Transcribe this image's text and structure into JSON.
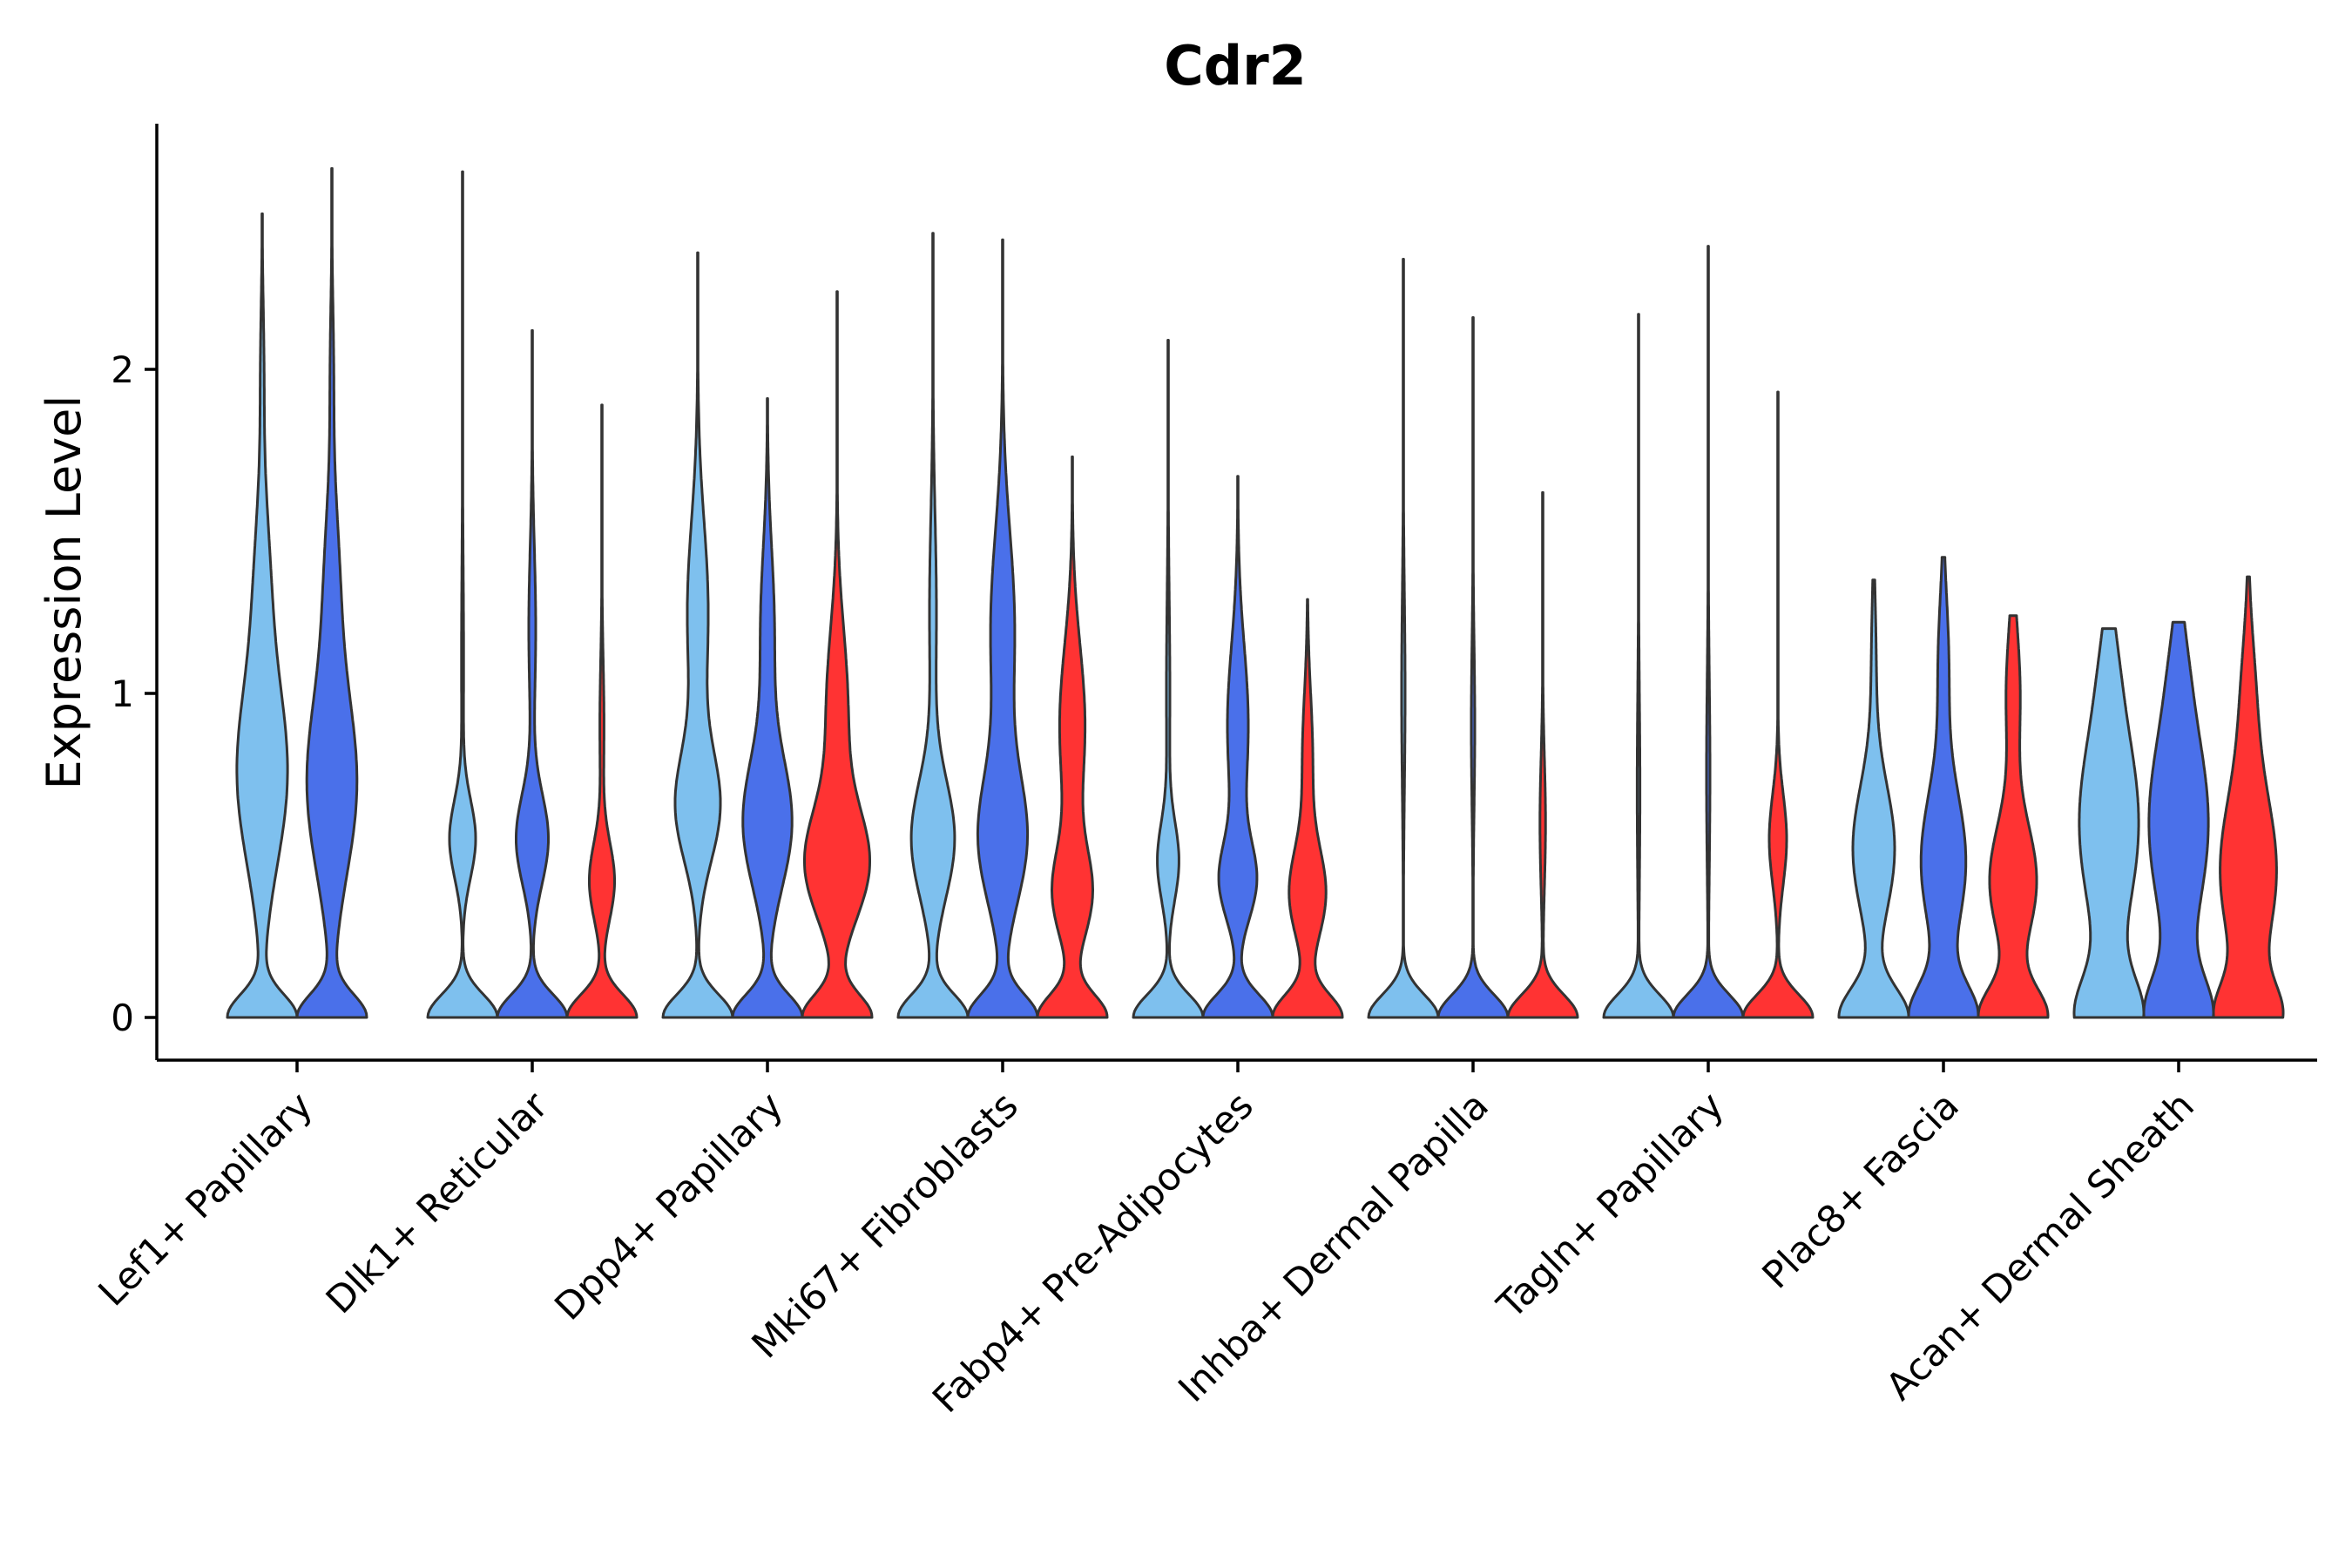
{
  "chart_data": {
    "type": "violin",
    "title": "Cdr2",
    "xlabel": "",
    "ylabel": "Expression Level",
    "ylim": [
      -0.13,
      2.75
    ],
    "yticks": [
      0,
      1,
      2
    ],
    "ytick_labels": [
      "0",
      "1",
      "2"
    ],
    "grid": false,
    "legend": "none",
    "categories": [
      "Lef1+ Papillary",
      "Dlk1+ Reticular",
      "Dpp4+ Papillary",
      "Mki67+ Fibroblasts",
      "Fabp4+ Pre-Adipocytes",
      "Inhba+ Dermal Papilla",
      "Tagln+ Papillary",
      "Plac8+ Fascia",
      "Acan+ Dermal Sheath"
    ],
    "group_colors": [
      "#7EC0EE",
      "#4A70EA",
      "#FF3333"
    ],
    "violins": [
      {
        "category": "Lef1+ Papillary",
        "group": 0,
        "max": 2.48,
        "modes": [
          [
            0.0,
            1.0,
            0.07
          ],
          [
            0.75,
            0.73,
            0.28
          ],
          [
            1.35,
            0.2,
            0.25
          ],
          [
            2.0,
            0.05,
            0.2
          ]
        ]
      },
      {
        "category": "Lef1+ Papillary",
        "group": 1,
        "max": 2.62,
        "modes": [
          [
            0.0,
            1.0,
            0.07
          ],
          [
            0.72,
            0.73,
            0.28
          ],
          [
            1.35,
            0.2,
            0.25
          ],
          [
            2.0,
            0.05,
            0.2
          ]
        ]
      },
      {
        "category": "Dlk1+ Reticular",
        "group": 0,
        "max": 2.61,
        "modes": [
          [
            0.0,
            1.0,
            0.07
          ],
          [
            0.55,
            0.37,
            0.12
          ],
          [
            1.1,
            0.03,
            0.3
          ]
        ]
      },
      {
        "category": "Dlk1+ Reticular",
        "group": 1,
        "max": 2.12,
        "modes": [
          [
            0.0,
            1.0,
            0.07
          ],
          [
            0.55,
            0.46,
            0.14
          ],
          [
            1.2,
            0.1,
            0.25
          ]
        ]
      },
      {
        "category": "Dlk1+ Reticular",
        "group": 2,
        "max": 1.89,
        "modes": [
          [
            0.0,
            1.0,
            0.07
          ],
          [
            0.42,
            0.36,
            0.12
          ],
          [
            0.9,
            0.06,
            0.2
          ]
        ]
      },
      {
        "category": "Dpp4+ Papillary",
        "group": 0,
        "max": 2.36,
        "modes": [
          [
            0.0,
            1.0,
            0.07
          ],
          [
            0.65,
            0.62,
            0.17
          ],
          [
            1.25,
            0.3,
            0.28
          ]
        ]
      },
      {
        "category": "Dpp4+ Papillary",
        "group": 1,
        "max": 1.91,
        "modes": [
          [
            0.0,
            1.0,
            0.07
          ],
          [
            0.6,
            0.7,
            0.2
          ],
          [
            1.2,
            0.2,
            0.25
          ]
        ]
      },
      {
        "category": "Dpp4+ Papillary",
        "group": 2,
        "max": 2.24,
        "modes": [
          [
            0.0,
            0.95,
            0.07
          ],
          [
            0.47,
            0.86,
            0.17
          ],
          [
            0.95,
            0.3,
            0.25
          ]
        ]
      },
      {
        "category": "Mki67+ Fibroblasts",
        "group": 0,
        "max": 2.42,
        "modes": [
          [
            0.0,
            1.0,
            0.07
          ],
          [
            0.55,
            0.62,
            0.18
          ],
          [
            1.25,
            0.1,
            0.3
          ]
        ]
      },
      {
        "category": "Mki67+ Fibroblasts",
        "group": 1,
        "max": 2.4,
        "modes": [
          [
            0.0,
            1.0,
            0.07
          ],
          [
            0.55,
            0.69,
            0.2
          ],
          [
            1.2,
            0.35,
            0.3
          ]
        ]
      },
      {
        "category": "Mki67+ Fibroblasts",
        "group": 2,
        "max": 1.73,
        "modes": [
          [
            0.0,
            1.0,
            0.07
          ],
          [
            0.38,
            0.55,
            0.14
          ],
          [
            0.9,
            0.37,
            0.25
          ]
        ]
      },
      {
        "category": "Fabp4+ Pre-Adipocytes",
        "group": 0,
        "max": 2.09,
        "modes": [
          [
            0.0,
            1.0,
            0.07
          ],
          [
            0.48,
            0.3,
            0.12
          ],
          [
            1.0,
            0.05,
            0.3
          ]
        ]
      },
      {
        "category": "Fabp4+ Pre-Adipocytes",
        "group": 1,
        "max": 1.67,
        "modes": [
          [
            0.0,
            1.0,
            0.07
          ],
          [
            0.42,
            0.5,
            0.12
          ],
          [
            0.9,
            0.3,
            0.25
          ]
        ]
      },
      {
        "category": "Fabp4+ Pre-Adipocytes",
        "group": 2,
        "max": 1.29,
        "modes": [
          [
            0.0,
            1.0,
            0.07
          ],
          [
            0.38,
            0.52,
            0.14
          ],
          [
            0.8,
            0.15,
            0.2
          ]
        ]
      },
      {
        "category": "Inhba+ Dermal Papilla",
        "group": 0,
        "max": 2.34,
        "modes": [
          [
            0.0,
            1.0,
            0.07
          ],
          [
            1.0,
            0.05,
            0.3
          ]
        ]
      },
      {
        "category": "Inhba+ Dermal Papilla",
        "group": 1,
        "max": 2.16,
        "modes": [
          [
            0.0,
            1.0,
            0.07
          ],
          [
            0.9,
            0.05,
            0.25
          ]
        ]
      },
      {
        "category": "Inhba+ Dermal Papilla",
        "group": 2,
        "max": 1.62,
        "modes": [
          [
            0.0,
            1.0,
            0.07
          ],
          [
            0.6,
            0.08,
            0.2
          ]
        ]
      },
      {
        "category": "Tagln+ Papillary",
        "group": 0,
        "max": 2.17,
        "modes": [
          [
            0.0,
            1.0,
            0.07
          ],
          [
            0.7,
            0.04,
            0.3
          ]
        ]
      },
      {
        "category": "Tagln+ Papillary",
        "group": 1,
        "max": 2.38,
        "modes": [
          [
            0.0,
            1.0,
            0.07
          ],
          [
            0.75,
            0.05,
            0.3
          ]
        ]
      },
      {
        "category": "Tagln+ Papillary",
        "group": 2,
        "max": 1.93,
        "modes": [
          [
            0.0,
            1.0,
            0.07
          ],
          [
            0.55,
            0.25,
            0.14
          ]
        ]
      },
      {
        "category": "Plac8+ Fascia",
        "group": 0,
        "max": 1.35,
        "modes": [
          [
            0.0,
            0.9,
            0.09
          ],
          [
            0.52,
            0.55,
            0.2
          ],
          [
            1.1,
            0.06,
            0.2
          ]
        ]
      },
      {
        "category": "Plac8+ Fascia",
        "group": 1,
        "max": 1.42,
        "modes": [
          [
            0.0,
            0.95,
            0.1
          ],
          [
            0.48,
            0.65,
            0.22
          ],
          [
            1.1,
            0.15,
            0.2
          ]
        ]
      },
      {
        "category": "Plac8+ Fascia",
        "group": 2,
        "max": 1.24,
        "modes": [
          [
            0.0,
            0.95,
            0.09
          ],
          [
            0.42,
            0.67,
            0.18
          ],
          [
            1.0,
            0.2,
            0.2
          ]
        ]
      },
      {
        "category": "Acan+ Dermal Sheath",
        "group": 0,
        "max": 1.2,
        "modes": [
          [
            0.0,
            0.95,
            0.12
          ],
          [
            0.6,
            0.92,
            0.3
          ],
          [
            1.1,
            0.1,
            0.15
          ]
        ]
      },
      {
        "category": "Acan+ Dermal Sheath",
        "group": 1,
        "max": 1.22,
        "modes": [
          [
            0.0,
            0.95,
            0.12
          ],
          [
            0.6,
            0.92,
            0.3
          ],
          [
            1.1,
            0.1,
            0.15
          ]
        ]
      },
      {
        "category": "Acan+ Dermal Sheath",
        "group": 2,
        "max": 1.36,
        "modes": [
          [
            0.0,
            0.95,
            0.1
          ],
          [
            0.45,
            0.92,
            0.25
          ],
          [
            1.0,
            0.2,
            0.2
          ]
        ]
      }
    ]
  }
}
